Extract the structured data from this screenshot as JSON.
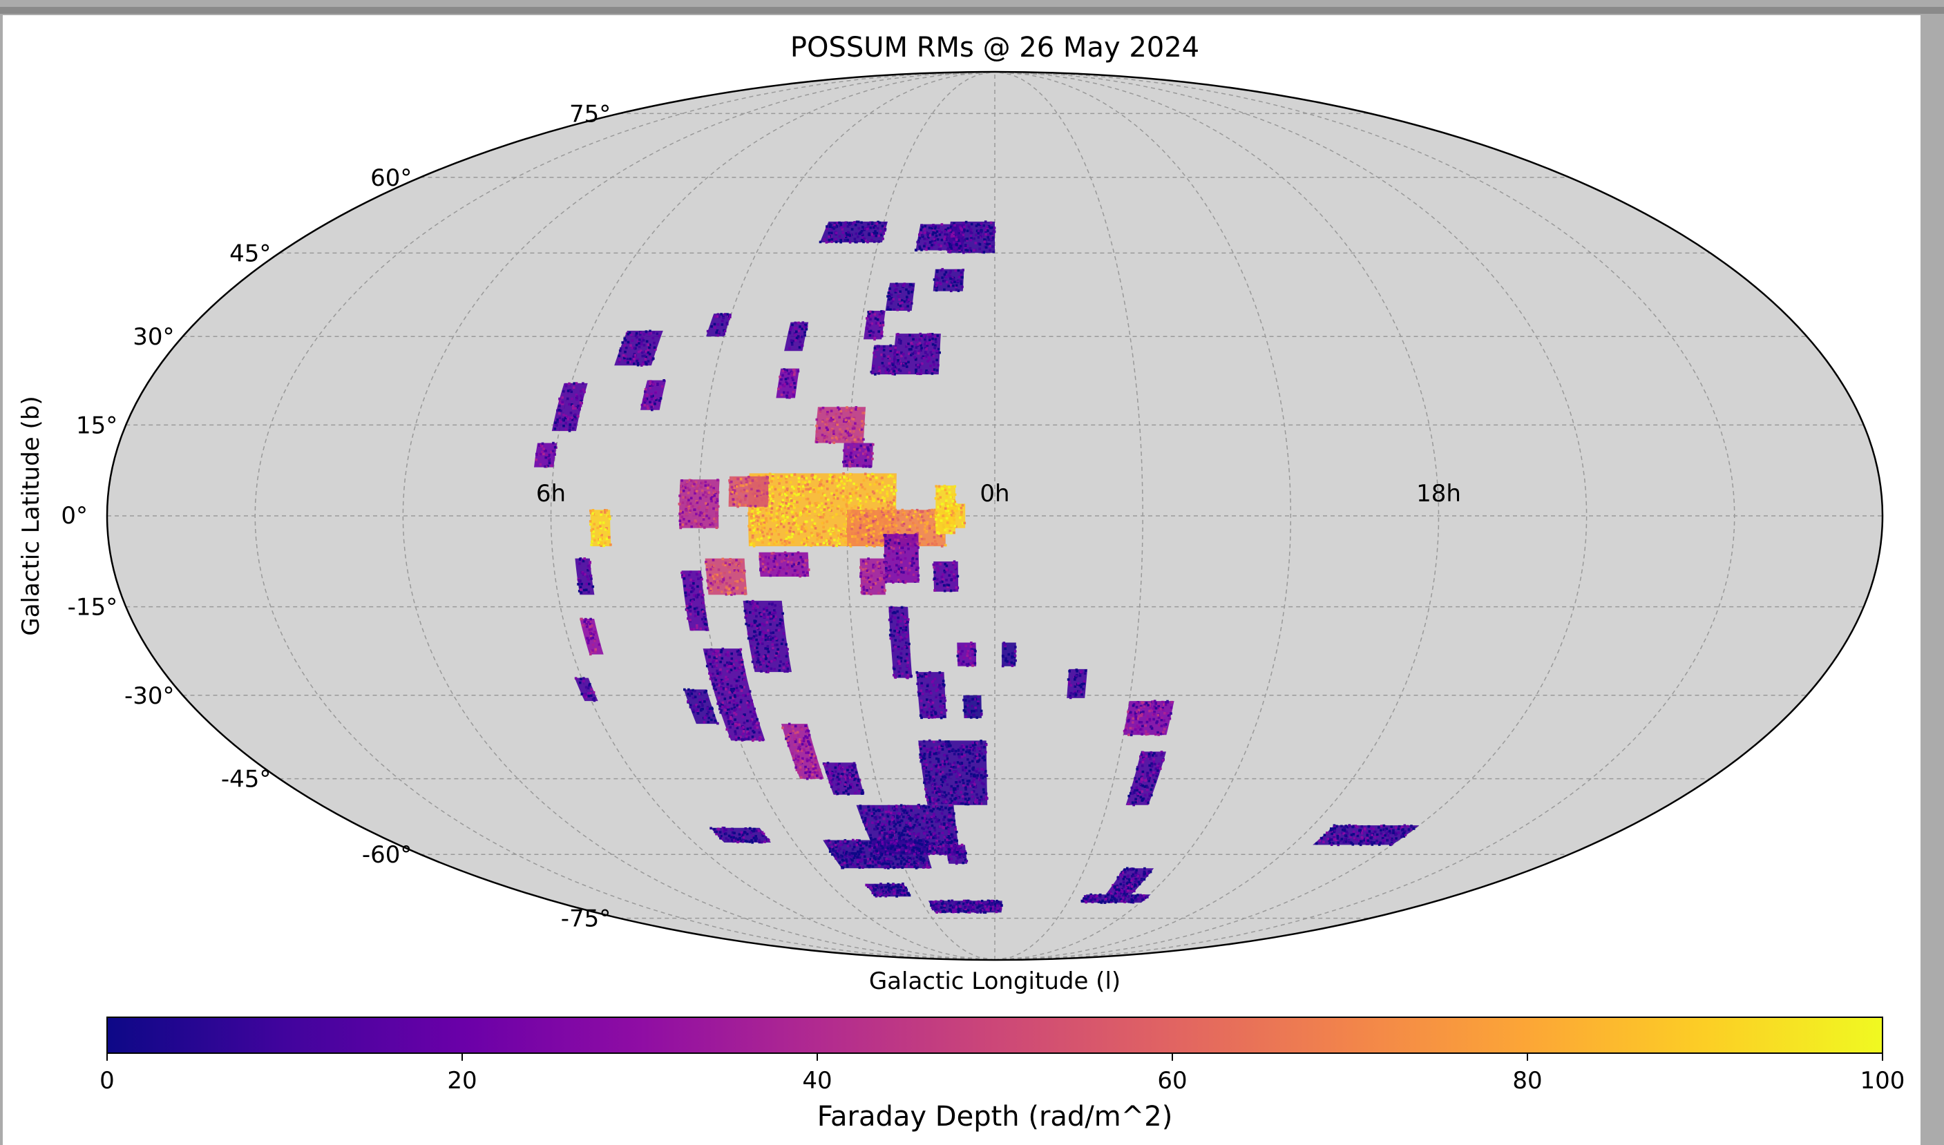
{
  "chart_data": {
    "type": "scatter",
    "projection": "mollweide",
    "title": "POSSUM RMs @ 26 May 2024",
    "xlabel": "Galactic Longitude (l)",
    "ylabel": "Galactic Latitude (b)",
    "grid": true,
    "background_color": "#d3d3d3",
    "lat_ticks": [
      {
        "value": 75,
        "label": "75°"
      },
      {
        "value": 60,
        "label": "60°"
      },
      {
        "value": 45,
        "label": "45°"
      },
      {
        "value": 30,
        "label": "30°"
      },
      {
        "value": 15,
        "label": "15°"
      },
      {
        "value": 0,
        "label": "0°"
      },
      {
        "value": -15,
        "label": "-15°"
      },
      {
        "value": -30,
        "label": "-30°"
      },
      {
        "value": -45,
        "label": "-45°"
      },
      {
        "value": -60,
        "label": "-60°"
      },
      {
        "value": -75,
        "label": "-75°"
      }
    ],
    "lon_ticks": [
      {
        "value": 90,
        "label": "6h"
      },
      {
        "value": 0,
        "label": "0h"
      },
      {
        "value": -90,
        "label": "18h"
      }
    ],
    "colorbar": {
      "label": "Faraday Depth (rad/m^2)",
      "colormap": "plasma",
      "range": [
        0,
        100
      ],
      "ticks": [
        {
          "value": 0,
          "label": "0"
        },
        {
          "value": 20,
          "label": "20"
        },
        {
          "value": 40,
          "label": "40"
        },
        {
          "value": 60,
          "label": "60"
        },
        {
          "value": 80,
          "label": "80"
        },
        {
          "value": 100,
          "label": "100"
        }
      ],
      "orientation": "horizontal",
      "position": "bottom"
    },
    "regions": [
      {
        "lon": -6,
        "lat": 48,
        "dlon": 12,
        "dlat": 6,
        "value": 8
      },
      {
        "lon": -14,
        "lat": 48,
        "dlon": 12,
        "dlat": 5,
        "value": 10
      },
      {
        "lon": -11,
        "lat": 40,
        "dlon": 7,
        "dlat": 4,
        "value": 8
      },
      {
        "lon": -22,
        "lat": 37,
        "dlon": 6,
        "dlat": 5,
        "value": 9
      },
      {
        "lon": -37,
        "lat": 49,
        "dlon": 16,
        "dlat": 4,
        "value": 8
      },
      {
        "lon": -17,
        "lat": 27,
        "dlon": 10,
        "dlat": 7,
        "value": 12
      },
      {
        "lon": -24,
        "lat": 26,
        "dlon": 5,
        "dlat": 5,
        "value": 12
      },
      {
        "lon": -27,
        "lat": 32,
        "dlon": 4,
        "dlat": 5,
        "value": 15
      },
      {
        "lon": -44,
        "lat": 30,
        "dlon": 4,
        "dlat": 5,
        "value": 12
      },
      {
        "lon": -44,
        "lat": 22,
        "dlon": 4,
        "dlat": 5,
        "value": 22
      },
      {
        "lon": -62,
        "lat": 32,
        "dlon": 4,
        "dlat": 4,
        "value": 10
      },
      {
        "lon": -78,
        "lat": 28,
        "dlon": 8,
        "dlat": 6,
        "value": 12
      },
      {
        "lon": -72,
        "lat": 20,
        "dlon": 4,
        "dlat": 5,
        "value": 18
      },
      {
        "lon": -89,
        "lat": 18,
        "dlon": 5,
        "dlat": 8,
        "value": 14
      },
      {
        "lon": -92,
        "lat": 10,
        "dlon": 4,
        "dlat": 4,
        "value": 20
      },
      {
        "lon": -32,
        "lat": 15,
        "dlon": 10,
        "dlat": 6,
        "value": 45
      },
      {
        "lon": -28,
        "lat": 10,
        "dlon": 6,
        "dlat": 4,
        "value": 25
      },
      {
        "lon": -60,
        "lat": 2,
        "dlon": 8,
        "dlat": 8,
        "value": 40
      },
      {
        "lon": -35,
        "lat": 1,
        "dlon": 30,
        "dlat": 12,
        "value": 85
      },
      {
        "lon": -50,
        "lat": 4,
        "dlon": 8,
        "dlat": 5,
        "value": 55
      },
      {
        "lon": -20,
        "lat": -2,
        "dlon": 20,
        "dlat": 6,
        "value": 70
      },
      {
        "lon": -10,
        "lat": 1,
        "dlon": 4,
        "dlat": 8,
        "value": 92
      },
      {
        "lon": -19,
        "lat": -7,
        "dlon": 7,
        "dlat": 8,
        "value": 25
      },
      {
        "lon": -25,
        "lat": -10,
        "dlon": 5,
        "dlat": 6,
        "value": 35
      },
      {
        "lon": -43,
        "lat": -8,
        "dlon": 10,
        "dlat": 4,
        "value": 30
      },
      {
        "lon": -55,
        "lat": -10,
        "dlon": 8,
        "dlat": 6,
        "value": 50
      },
      {
        "lon": -62,
        "lat": -14,
        "dlon": 4,
        "dlat": 10,
        "value": 15
      },
      {
        "lon": -48,
        "lat": -20,
        "dlon": 8,
        "dlat": 12,
        "value": 12
      },
      {
        "lon": -58,
        "lat": -30,
        "dlon": 8,
        "dlat": 16,
        "value": 14
      },
      {
        "lon": -46,
        "lat": -40,
        "dlon": 6,
        "dlat": 10,
        "value": 35
      },
      {
        "lon": -38,
        "lat": -45,
        "dlon": 8,
        "dlat": 6,
        "value": 12
      },
      {
        "lon": -66,
        "lat": -32,
        "dlon": 5,
        "dlat": 6,
        "value": 8
      },
      {
        "lon": -80,
        "lat": -2,
        "dlon": 4,
        "dlat": 6,
        "value": 90
      },
      {
        "lon": -84,
        "lat": -10,
        "dlon": 3,
        "dlat": 6,
        "value": 12
      },
      {
        "lon": -85,
        "lat": -20,
        "dlon": 3,
        "dlat": 6,
        "value": 30
      },
      {
        "lon": -90,
        "lat": -29,
        "dlon": 3,
        "dlat": 4,
        "value": 12
      },
      {
        "lon": -10,
        "lat": -10,
        "dlon": 5,
        "dlat": 5,
        "value": 15
      },
      {
        "lon": -20,
        "lat": -21,
        "dlon": 4,
        "dlat": 12,
        "value": 10
      },
      {
        "lon": -14,
        "lat": -30,
        "dlon": 6,
        "dlat": 8,
        "value": 10
      },
      {
        "lon": -6,
        "lat": -23,
        "dlon": 4,
        "dlat": 4,
        "value": 18
      },
      {
        "lon": -5,
        "lat": -32,
        "dlon": 4,
        "dlat": 4,
        "value": 3
      },
      {
        "lon": 3,
        "lat": -23,
        "dlon": 3,
        "dlat": 4,
        "value": 5
      },
      {
        "lon": -10,
        "lat": -44,
        "dlon": 16,
        "dlat": 12,
        "value": 8
      },
      {
        "lon": -24,
        "lat": -55,
        "dlon": 26,
        "dlat": 10,
        "value": 8
      },
      {
        "lon": -36,
        "lat": -60,
        "dlon": 30,
        "dlat": 6,
        "value": 7
      },
      {
        "lon": -12,
        "lat": -60,
        "dlon": 6,
        "dlat": 4,
        "value": 10
      },
      {
        "lon": -12,
        "lat": -72,
        "dlon": 30,
        "dlat": 3,
        "value": 7
      },
      {
        "lon": -40,
        "lat": -68,
        "dlon": 14,
        "dlat": 3,
        "value": 7
      },
      {
        "lon": -74,
        "lat": -56,
        "dlon": 14,
        "dlat": 3,
        "value": 8
      },
      {
        "lon": 18,
        "lat": -28,
        "dlon": 4,
        "dlat": 5,
        "value": 10
      },
      {
        "lon": 35,
        "lat": -34,
        "dlon": 10,
        "dlat": 6,
        "value": 25
      },
      {
        "lon": 38,
        "lat": -45,
        "dlon": 6,
        "dlat": 10,
        "value": 12
      },
      {
        "lon": 48,
        "lat": -66,
        "dlon": 10,
        "dlat": 6,
        "value": 10
      },
      {
        "lon": 48,
        "lat": -70,
        "dlon": 25,
        "dlat": 2,
        "value": 8
      },
      {
        "lon": 108,
        "lat": -56,
        "dlon": 24,
        "dlat": 4,
        "value": 9
      },
      {
        "lon": -8,
        "lat": 0,
        "dlon": 4,
        "dlat": 4,
        "value": 90
      }
    ]
  }
}
